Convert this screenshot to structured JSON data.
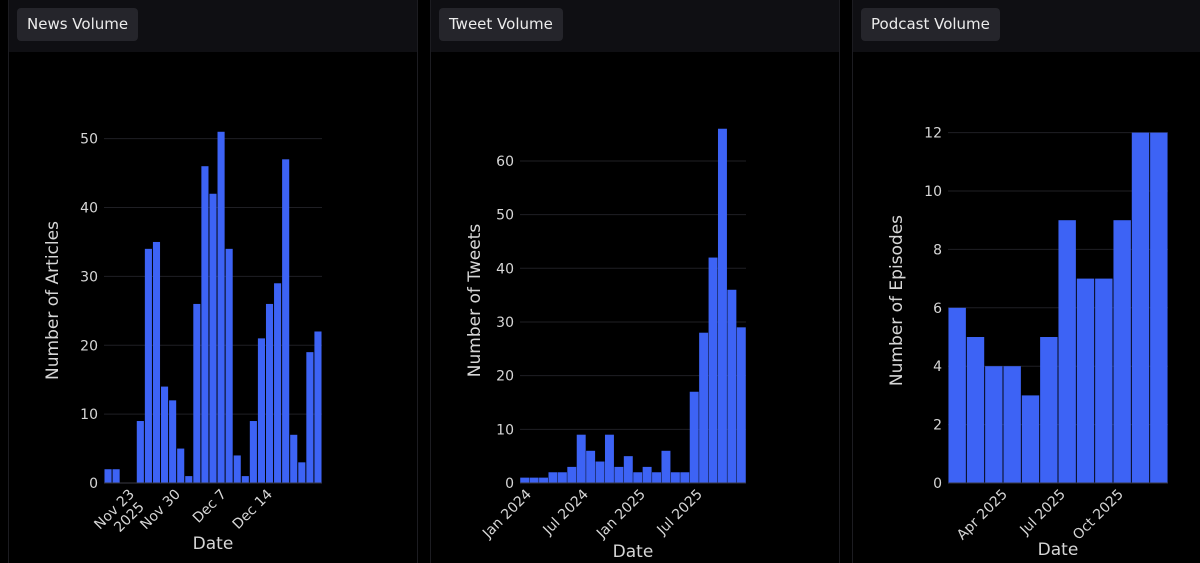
{
  "panels": [
    {
      "tab_label": "News Volume"
    },
    {
      "tab_label": "Tweet Volume"
    },
    {
      "tab_label": "Podcast Volume"
    }
  ],
  "colors": {
    "bar": "#3d63f5",
    "background": "#000000",
    "tab": "#25252b",
    "grid": "#1f1f24"
  },
  "chart_data": [
    {
      "type": "bar",
      "xlabel": "Date",
      "ylabel": "Number of Articles",
      "ylim": [
        0,
        53
      ],
      "yticks": [
        0,
        10,
        20,
        30,
        40,
        50
      ],
      "xtick_labels": [
        "Nov 23\n2025",
        "Nov 30",
        "Dec 7",
        "Dec 14"
      ],
      "x": [
        "2025-11-20",
        "2025-11-21",
        "2025-11-22",
        "2025-11-23",
        "2025-11-24",
        "2025-11-25",
        "2025-11-26",
        "2025-11-27",
        "2025-11-28",
        "2025-11-29",
        "2025-11-30",
        "2025-12-01",
        "2025-12-02",
        "2025-12-03",
        "2025-12-04",
        "2025-12-05",
        "2025-12-06",
        "2025-12-07",
        "2025-12-08",
        "2025-12-09",
        "2025-12-10",
        "2025-12-11",
        "2025-12-12",
        "2025-12-13",
        "2025-12-14",
        "2025-12-15",
        "2025-12-16"
      ],
      "values": [
        2,
        2,
        0,
        0,
        9,
        34,
        35,
        14,
        12,
        5,
        1,
        26,
        46,
        42,
        51,
        34,
        4,
        1,
        9,
        21,
        26,
        29,
        47,
        7,
        3,
        19,
        22
      ]
    },
    {
      "type": "bar",
      "xlabel": "Date",
      "ylabel": "Number of Tweets",
      "ylim": [
        0,
        68
      ],
      "yticks": [
        0,
        10,
        20,
        30,
        40,
        50,
        60
      ],
      "xtick_labels": [
        "Jan 2024",
        "Jul 2024",
        "Jan 2025",
        "Jul 2025"
      ],
      "x": [
        "2024-01",
        "2024-02",
        "2024-03",
        "2024-04",
        "2024-05",
        "2024-06",
        "2024-07",
        "2024-08",
        "2024-09",
        "2024-10",
        "2024-11",
        "2024-12",
        "2025-01",
        "2025-02",
        "2025-03",
        "2025-04",
        "2025-05",
        "2025-06",
        "2025-07",
        "2025-08",
        "2025-09",
        "2025-10",
        "2025-11",
        "2025-12"
      ],
      "values": [
        1,
        1,
        1,
        2,
        2,
        3,
        9,
        6,
        4,
        9,
        3,
        5,
        2,
        3,
        2,
        6,
        2,
        2,
        17,
        28,
        42,
        66,
        36,
        29
      ]
    },
    {
      "type": "bar",
      "xlabel": "Date",
      "ylabel": "Number of Episodes",
      "ylim": [
        0,
        12.5
      ],
      "yticks": [
        0,
        2,
        4,
        6,
        8,
        10,
        12
      ],
      "xtick_labels": [
        "Apr 2025",
        "Jul 2025",
        "Oct 2025"
      ],
      "x": [
        "2025-01",
        "2025-02",
        "2025-03",
        "2025-04",
        "2025-05",
        "2025-06",
        "2025-07",
        "2025-08",
        "2025-09",
        "2025-10",
        "2025-11",
        "2025-12"
      ],
      "values": [
        6,
        5,
        4,
        4,
        3,
        5,
        9,
        7,
        7,
        9,
        12,
        12
      ]
    }
  ]
}
